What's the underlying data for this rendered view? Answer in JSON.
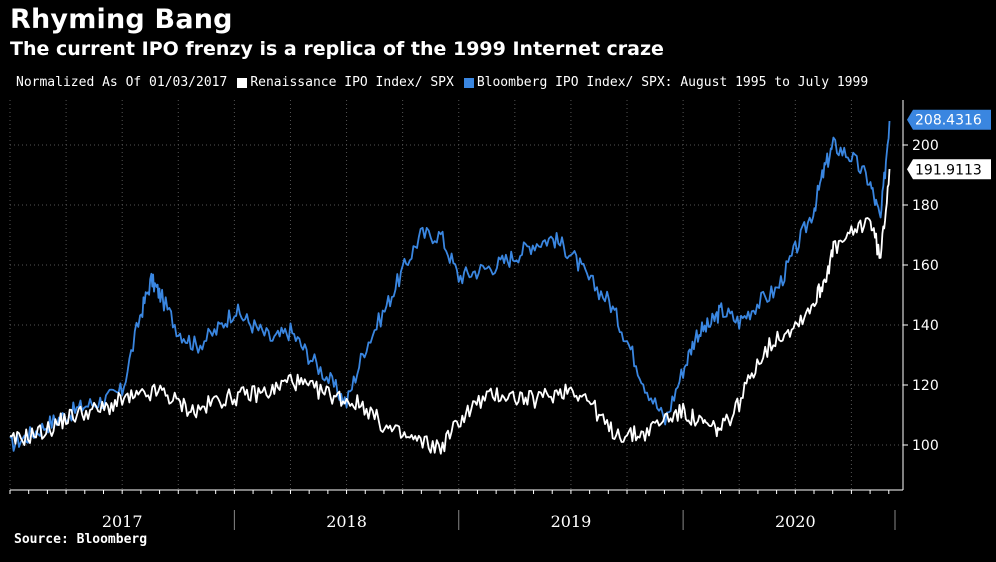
{
  "header": {
    "title": "Rhyming Bang",
    "subtitle": "The current IPO frenzy is a replica of the 1999 Internet craze"
  },
  "footer": {
    "source": "Source: Bloomberg"
  },
  "colors": {
    "background": "#000000",
    "white_series": "#ffffff",
    "blue_series": "#3a86e0",
    "grid": "#555555"
  },
  "chart_data": {
    "type": "line",
    "legend_note": "Normalized As Of 01/03/2017",
    "legend_position": "top-left",
    "grid": true,
    "x_ticks": [
      "2017",
      "2018",
      "2019",
      "2020"
    ],
    "xlim": [
      2017.0,
      2020.98
    ],
    "ylim": [
      85,
      215
    ],
    "y_ticks": [
      100,
      120,
      140,
      160,
      180,
      200
    ],
    "series": [
      {
        "name": "Renaissance IPO Index/ SPX",
        "color": "#ffffff",
        "last_value": "191.9113",
        "x": [
          2017.0,
          2017.08,
          2017.17,
          2017.25,
          2017.33,
          2017.42,
          2017.5,
          2017.58,
          2017.67,
          2017.75,
          2017.83,
          2017.92,
          2018.0,
          2018.08,
          2018.17,
          2018.25,
          2018.33,
          2018.42,
          2018.5,
          2018.58,
          2018.67,
          2018.75,
          2018.83,
          2018.92,
          2019.0,
          2019.08,
          2019.17,
          2019.25,
          2019.33,
          2019.42,
          2019.5,
          2019.58,
          2019.67,
          2019.75,
          2019.83,
          2019.92,
          2020.0,
          2020.06,
          2020.12,
          2020.17,
          2020.25,
          2020.33,
          2020.42,
          2020.5,
          2020.58,
          2020.63,
          2020.67,
          2020.75,
          2020.83,
          2020.88,
          2020.92
        ],
        "y": [
          101,
          103,
          105,
          109,
          111,
          112,
          115,
          116,
          118,
          114,
          111,
          115,
          116,
          117,
          118,
          122,
          119,
          117,
          115,
          113,
          106,
          103,
          101,
          99,
          108,
          114,
          117,
          116,
          115,
          117,
          119,
          115,
          105,
          103,
          104,
          109,
          111,
          108,
          106,
          105,
          114,
          128,
          136,
          140,
          147,
          155,
          165,
          170,
          176,
          162,
          192
        ]
      },
      {
        "name": "Bloomberg IPO Index/ SPX: August 1995 to July 1999",
        "color": "#3a86e0",
        "last_value": "208.4316",
        "x": [
          2017.0,
          2017.08,
          2017.17,
          2017.25,
          2017.33,
          2017.42,
          2017.5,
          2017.58,
          2017.63,
          2017.67,
          2017.75,
          2017.83,
          2017.92,
          2018.0,
          2018.08,
          2018.17,
          2018.25,
          2018.33,
          2018.42,
          2018.5,
          2018.58,
          2018.67,
          2018.75,
          2018.83,
          2018.92,
          2019.0,
          2019.08,
          2019.17,
          2019.25,
          2019.33,
          2019.42,
          2019.5,
          2019.58,
          2019.67,
          2019.75,
          2019.83,
          2019.92,
          2020.0,
          2020.06,
          2020.12,
          2020.17,
          2020.25,
          2020.33,
          2020.42,
          2020.5,
          2020.58,
          2020.63,
          2020.67,
          2020.75,
          2020.83,
          2020.88,
          2020.92
        ],
        "y": [
          100,
          103,
          107,
          110,
          113,
          115,
          118,
          143,
          155,
          150,
          138,
          133,
          138,
          145,
          140,
          135,
          138,
          130,
          122,
          114,
          132,
          145,
          158,
          170,
          170,
          156,
          158,
          160,
          163,
          167,
          169,
          164,
          155,
          148,
          135,
          120,
          108,
          125,
          137,
          140,
          145,
          141,
          147,
          152,
          165,
          178,
          192,
          200,
          196,
          188,
          175,
          208
        ]
      }
    ]
  }
}
